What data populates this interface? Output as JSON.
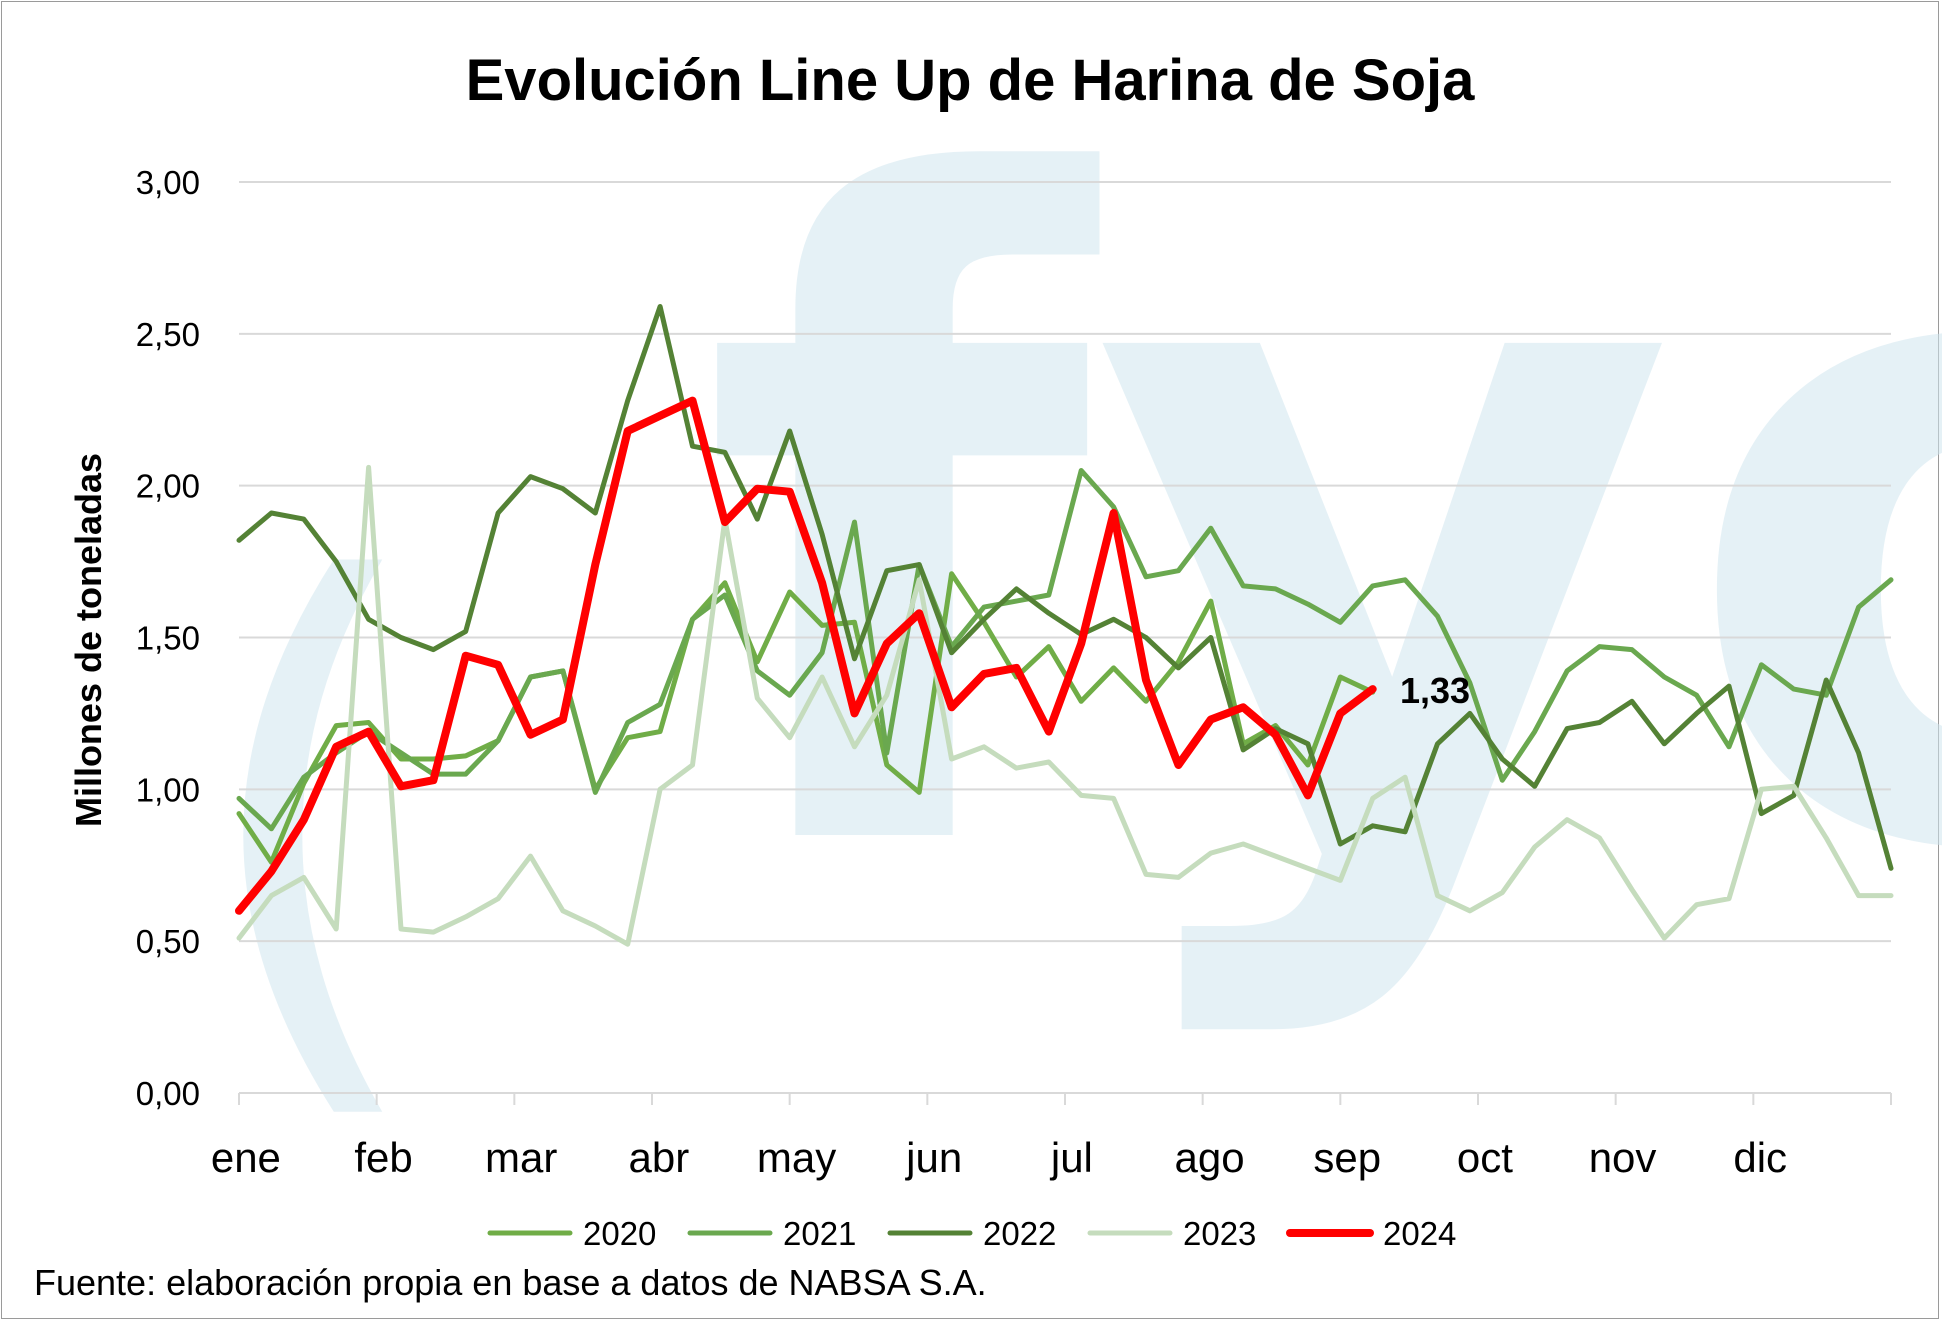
{
  "chart_data": {
    "type": "line",
    "title": "Evolución Line Up de Harina de Soja",
    "ylabel": "Millones de toneladas",
    "xlabel": "",
    "ylim": [
      0,
      3
    ],
    "y_ticks": [
      "0,00",
      "0,50",
      "1,00",
      "1,50",
      "2,00",
      "2,50",
      "3,00"
    ],
    "y_tick_values": [
      0,
      0.5,
      1,
      1.5,
      2,
      2.5,
      3
    ],
    "months": [
      "ene",
      "feb",
      "mar",
      "abr",
      "may",
      "jun",
      "jul",
      "ago",
      "sep",
      "oct",
      "nov",
      "dic"
    ],
    "grid": true,
    "legend_position": "bottom",
    "x_note": "weekly values, 52 weeks",
    "series": [
      {
        "name": "2020",
        "color": "#70ad47",
        "width": 5,
        "values": [
          0.92,
          0.76,
          1.02,
          1.21,
          1.22,
          1.1,
          1.1,
          1.11,
          1.16,
          1.37,
          1.39,
          1.0,
          1.17,
          1.19,
          1.56,
          1.68,
          1.42,
          1.65,
          1.54,
          1.55,
          1.08,
          0.99,
          1.71,
          1.55,
          1.37,
          1.47,
          1.29,
          1.4,
          1.29,
          1.42,
          1.62,
          1.15,
          1.21,
          1.08,
          1.37,
          1.32,
          null,
          null,
          null,
          null,
          null,
          null,
          null,
          null,
          null,
          null,
          null,
          null,
          null,
          null,
          null,
          null
        ]
      },
      {
        "name": "2021",
        "color": "#6aa84f",
        "width": 5,
        "values": [
          0.97,
          0.87,
          1.04,
          1.12,
          1.19,
          1.12,
          1.05,
          1.05,
          1.16,
          1.37,
          1.39,
          0.99,
          1.22,
          1.28,
          1.56,
          1.64,
          1.39,
          1.31,
          1.45,
          1.88,
          1.12,
          1.74,
          1.47,
          1.6,
          1.62,
          1.64,
          2.05,
          1.93,
          1.7,
          1.72,
          1.86,
          1.67,
          1.66,
          1.61,
          1.55,
          1.67,
          1.69,
          1.57,
          1.35,
          1.03,
          1.19,
          1.39,
          1.47,
          1.46,
          1.37,
          1.31,
          1.14,
          1.41,
          1.33,
          1.31,
          1.6,
          1.69
        ]
      },
      {
        "name": "2022",
        "color": "#548235",
        "width": 5,
        "values": [
          1.82,
          1.91,
          1.89,
          1.75,
          1.56,
          1.5,
          1.46,
          1.52,
          1.91,
          2.03,
          1.99,
          1.91,
          2.28,
          2.59,
          2.13,
          2.11,
          1.89,
          2.18,
          1.84,
          1.43,
          1.72,
          1.74,
          1.45,
          1.56,
          1.66,
          1.58,
          1.51,
          1.56,
          1.5,
          1.4,
          1.5,
          1.13,
          1.2,
          1.15,
          0.82,
          0.88,
          0.86,
          1.15,
          1.25,
          1.1,
          1.01,
          1.2,
          1.22,
          1.29,
          1.15,
          1.25,
          1.34,
          0.92,
          0.98,
          1.36,
          1.12,
          0.74
        ]
      },
      {
        "name": "2023",
        "color": "#c5dcbd",
        "width": 5,
        "values": [
          0.51,
          0.65,
          0.71,
          0.54,
          2.06,
          0.54,
          0.53,
          0.58,
          0.64,
          0.78,
          0.6,
          0.55,
          0.49,
          1.0,
          1.08,
          1.89,
          1.3,
          1.17,
          1.37,
          1.14,
          1.31,
          1.69,
          1.1,
          1.14,
          1.07,
          1.09,
          0.98,
          0.97,
          0.72,
          0.71,
          0.79,
          0.82,
          0.78,
          0.74,
          0.7,
          0.97,
          1.04,
          0.65,
          0.6,
          0.66,
          0.81,
          0.9,
          0.84,
          0.67,
          0.51,
          0.62,
          0.64,
          1.0,
          1.01,
          0.84,
          0.65,
          0.65
        ]
      },
      {
        "name": "2024",
        "color": "#ff0000",
        "width": 8,
        "values": [
          0.6,
          0.73,
          0.9,
          1.14,
          1.19,
          1.01,
          1.03,
          1.44,
          1.41,
          1.18,
          1.23,
          1.74,
          2.18,
          2.23,
          2.28,
          1.88,
          1.99,
          1.98,
          1.68,
          1.25,
          1.48,
          1.58,
          1.27,
          1.38,
          1.4,
          1.19,
          1.48,
          1.91,
          1.36,
          1.08,
          1.23,
          1.27,
          1.18,
          0.98,
          1.25,
          1.33,
          null,
          null,
          null,
          null,
          null,
          null,
          null,
          null,
          null,
          null,
          null,
          null,
          null,
          null,
          null,
          null
        ]
      }
    ],
    "annotation": {
      "text": "1,33",
      "series": "2024",
      "index": 35
    }
  },
  "source_note": "Fuente: elaboración propia en base a datos de NABSA S.A.",
  "watermark": "fyo"
}
